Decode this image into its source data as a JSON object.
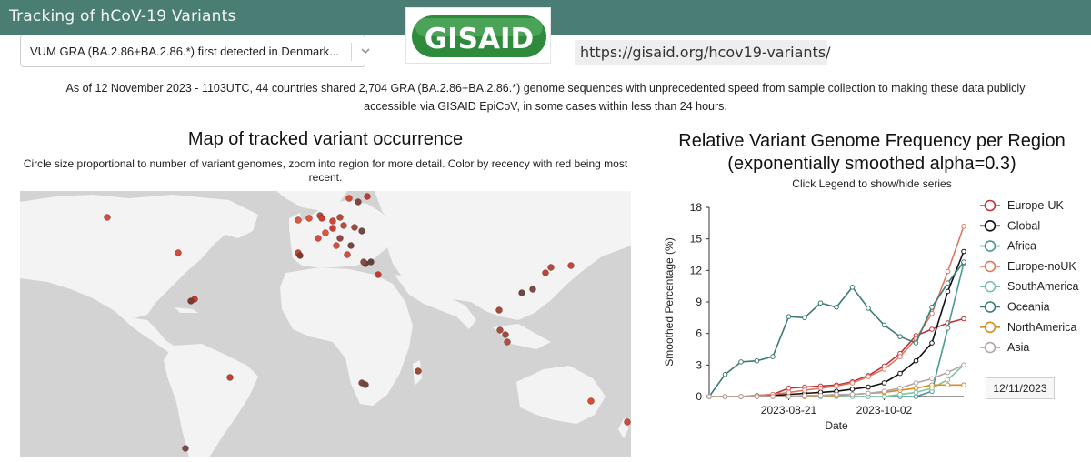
{
  "header": {
    "title": "Tracking of hCoV-19 Variants",
    "logo_text": "GISAID",
    "url": "https://gisaid.org/hcov19-variants/"
  },
  "variant_select": {
    "selected": "VUM GRA (BA.2.86+BA.2.86.*) first detected in Denmark..."
  },
  "intro_text": "As of 12 November 2023 - 1103UTC, 44 countries shared 2,704 GRA (BA.2.86+BA.2.86.*) genome sequences with unprecedented speed from sample collection to making these data publicly accessible via GISAID EpiCoV, in some cases within less than 24 hours.",
  "map": {
    "title": "Map of tracked variant occurrence",
    "subtitle": "Circle size proportional to number of variant genomes, zoom into region for more detail. Color by recency with red being most recent."
  },
  "chart": {
    "title_line1": "Relative Variant Genome Frequency per Region",
    "title_line2": "(exponentially smoothed alpha=0.3)",
    "hint": "Click Legend to show/hide series",
    "date_badge": "12/11/2023"
  },
  "chart_data": {
    "type": "line",
    "xlabel": "Date",
    "ylabel": "Smoothed Percentage (%)",
    "ylim": [
      0,
      18
    ],
    "yticks": [
      0,
      3,
      6,
      9,
      12,
      15,
      18
    ],
    "xtick_labels": [
      "2023-08-21",
      "2023-10-02"
    ],
    "x": [
      "2023-07-17",
      "2023-07-24",
      "2023-07-31",
      "2023-08-07",
      "2023-08-14",
      "2023-08-21",
      "2023-08-28",
      "2023-09-04",
      "2023-09-11",
      "2023-09-18",
      "2023-09-25",
      "2023-10-02",
      "2023-10-09",
      "2023-10-16",
      "2023-10-23",
      "2023-10-30",
      "2023-11-06"
    ],
    "legend_position": "right",
    "grid": false,
    "series": [
      {
        "name": "Europe-UK",
        "color": "#c0303a",
        "values": [
          0,
          0,
          0,
          0.1,
          0.2,
          0.8,
          0.9,
          1.0,
          1.1,
          1.4,
          2.0,
          2.9,
          4.1,
          5.8,
          6.4,
          7.0,
          7.4
        ]
      },
      {
        "name": "Global",
        "color": "#111111",
        "values": [
          0,
          0,
          0,
          0,
          0.1,
          0.2,
          0.3,
          0.4,
          0.5,
          0.7,
          0.9,
          1.3,
          2.2,
          3.4,
          5.1,
          10.0,
          13.8
        ]
      },
      {
        "name": "Africa",
        "color": "#4a9a93",
        "values": [
          0,
          0,
          0,
          0,
          0,
          0,
          0,
          0,
          0,
          0,
          0,
          0,
          0,
          0,
          0.5,
          6.5,
          12.7
        ]
      },
      {
        "name": "Europe-noUK",
        "color": "#e07860",
        "values": [
          0,
          0,
          0,
          0.1,
          0.2,
          0.4,
          0.6,
          0.8,
          1.0,
          1.3,
          1.9,
          2.6,
          3.8,
          5.5,
          7.9,
          11.9,
          16.2
        ]
      },
      {
        "name": "SouthAmerica",
        "color": "#7dc3a8",
        "values": [
          0,
          0,
          0,
          0,
          0,
          0,
          0,
          0,
          0,
          0,
          0,
          0,
          0.2,
          0.4,
          0.8,
          1.6,
          3.0
        ]
      },
      {
        "name": "Oceania",
        "color": "#3b7c76",
        "values": [
          0,
          2.1,
          3.3,
          3.4,
          3.8,
          7.6,
          7.5,
          8.9,
          8.5,
          10.4,
          8.4,
          6.8,
          5.7,
          5.1,
          8.5,
          10.8,
          12.8
        ]
      },
      {
        "name": "NorthAmerica",
        "color": "#d98e20",
        "values": [
          0,
          0,
          0,
          0,
          0,
          0,
          0,
          0.1,
          0.1,
          0.2,
          0.3,
          0.4,
          0.6,
          0.8,
          1.1,
          1.1,
          1.1
        ]
      },
      {
        "name": "Asia",
        "color": "#b6a4a8",
        "values": [
          0,
          0,
          0,
          0,
          0,
          0,
          0.1,
          0.1,
          0.2,
          0.2,
          0.3,
          0.5,
          0.8,
          1.3,
          1.7,
          2.3,
          3.0
        ]
      }
    ]
  }
}
